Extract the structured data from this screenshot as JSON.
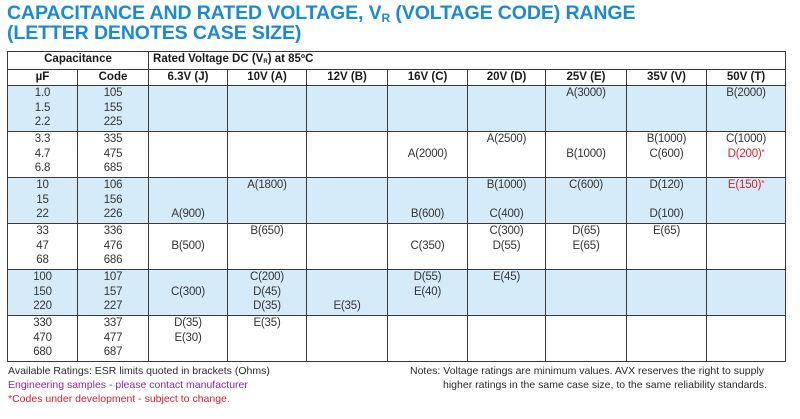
{
  "title": {
    "line1_prefix": "CAPACITANCE AND RATED VOLTAGE, V",
    "line1_sub": "R",
    "line1_suffix": " (VOLTAGE CODE) RANGE",
    "line2": "(LETTER DENOTES CASE SIZE)"
  },
  "colors": {
    "title": "#1a8ad8",
    "shaded_row": "#d6ebfa",
    "under_development": "#d42030",
    "engineering_samples": "#8a2a9a",
    "border": "#3a3a3a"
  },
  "table": {
    "capacitance_header": "Capacitance",
    "rated_header_prefix": "Rated Voltage DC (V",
    "rated_header_sub": "R",
    "rated_header_suffix": ") at 85ºC",
    "uf_header": "µF",
    "code_header": "Code",
    "voltage_columns": [
      "6.3V (J)",
      "10V (A)",
      "12V (B)",
      "16V (C)",
      "20V (D)",
      "25V (E)",
      "35V (V)",
      "50V (T)"
    ],
    "groups": [
      {
        "shaded": true,
        "uf": [
          "1.0",
          "1.5",
          "2.2"
        ],
        "code": [
          "105",
          "155",
          "225"
        ],
        "cells": [
          [
            "",
            "",
            ""
          ],
          [
            "",
            "",
            ""
          ],
          [
            "",
            "",
            ""
          ],
          [
            "",
            "",
            ""
          ],
          [
            "",
            "",
            ""
          ],
          [
            "A(3000)",
            "",
            ""
          ],
          [
            "",
            "",
            ""
          ],
          [
            "B(2000)",
            "",
            ""
          ]
        ]
      },
      {
        "shaded": false,
        "uf": [
          "3.3",
          "4.7",
          "6.8"
        ],
        "code": [
          "335",
          "475",
          "685"
        ],
        "cells": [
          [
            "",
            "",
            ""
          ],
          [
            "",
            "",
            ""
          ],
          [
            "",
            "",
            ""
          ],
          [
            "",
            "A(2000)",
            ""
          ],
          [
            "A(2500)",
            "",
            ""
          ],
          [
            "",
            "B(1000)",
            ""
          ],
          [
            "B(1000)",
            "C(600)",
            ""
          ],
          [
            "C(1000)",
            "D(200)*",
            ""
          ]
        ]
      },
      {
        "shaded": true,
        "uf": [
          "10",
          "15",
          "22"
        ],
        "code": [
          "106",
          "156",
          "226"
        ],
        "cells": [
          [
            "",
            "",
            "A(900)"
          ],
          [
            "A(1800)",
            "",
            ""
          ],
          [
            "",
            "",
            ""
          ],
          [
            "",
            "",
            "B(600)"
          ],
          [
            "B(1000)",
            "",
            "C(400)"
          ],
          [
            "C(600)",
            "",
            ""
          ],
          [
            "D(120)",
            "",
            "D(100)"
          ],
          [
            "E(150)*",
            "",
            ""
          ]
        ]
      },
      {
        "shaded": false,
        "uf": [
          "33",
          "47",
          "68"
        ],
        "code": [
          "336",
          "476",
          "686"
        ],
        "cells": [
          [
            "",
            "B(500)",
            ""
          ],
          [
            "B(650)",
            "",
            ""
          ],
          [
            "",
            "",
            ""
          ],
          [
            "",
            "C(350)",
            ""
          ],
          [
            "C(300)",
            "D(55)",
            ""
          ],
          [
            "D(65)",
            "E(65)",
            ""
          ],
          [
            "E(65)",
            "",
            ""
          ],
          [
            "",
            "",
            ""
          ]
        ]
      },
      {
        "shaded": true,
        "uf": [
          "100",
          "150",
          "220"
        ],
        "code": [
          "107",
          "157",
          "227"
        ],
        "cells": [
          [
            "",
            "C(300)",
            ""
          ],
          [
            "C(200)",
            "D(45)",
            "D(35)"
          ],
          [
            "",
            "",
            "E(35)"
          ],
          [
            "D(55)",
            "E(40)",
            ""
          ],
          [
            "E(45)",
            "",
            ""
          ],
          [
            "",
            "",
            ""
          ],
          [
            "",
            "",
            ""
          ],
          [
            "",
            "",
            ""
          ]
        ]
      },
      {
        "shaded": false,
        "uf": [
          "330",
          "470",
          "680"
        ],
        "code": [
          "337",
          "477",
          "687"
        ],
        "cells": [
          [
            "D(35)",
            "E(30)",
            ""
          ],
          [
            "E(35)",
            "",
            ""
          ],
          [
            "",
            "",
            ""
          ],
          [
            "",
            "",
            ""
          ],
          [
            "",
            "",
            ""
          ],
          [
            "",
            "",
            ""
          ],
          [
            "",
            "",
            ""
          ],
          [
            "",
            "",
            ""
          ]
        ]
      }
    ]
  },
  "footer": {
    "available_ratings": "Available Ratings: ESR limits quoted in brackets (Ohms)",
    "engineering_samples": "Engineering samples - please contact manufacturer",
    "under_development": "*Codes under development - subject to change.",
    "notes_line1": "Notes: Voltage ratings are minimum values. AVX reserves the right to supply",
    "notes_line2": "higher ratings in the same case size, to the same reliability standards."
  }
}
